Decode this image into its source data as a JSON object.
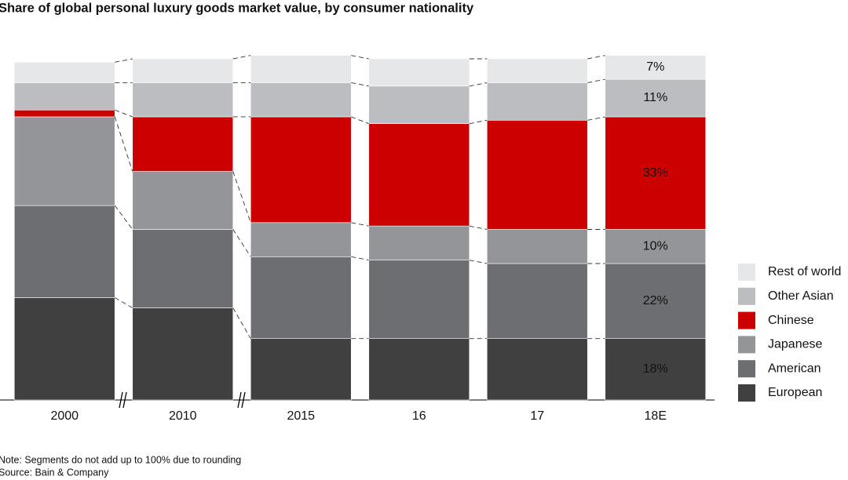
{
  "chart_data": {
    "type": "stacked_bar",
    "title": "Share of global personal luxury goods market value, by consumer nationality",
    "categories": [
      "2000",
      "2010",
      "2015",
      "16",
      "17",
      "18E"
    ],
    "ylim": [
      0,
      100
    ],
    "series": [
      {
        "name": "European",
        "color": "#404041",
        "values": [
          30,
          27,
          18,
          18,
          18,
          18
        ],
        "value_labels": [
          null,
          null,
          null,
          null,
          null,
          "18%"
        ]
      },
      {
        "name": "American",
        "color": "#6d6e71",
        "values": [
          27,
          23,
          24,
          23,
          22,
          22
        ],
        "value_labels": [
          null,
          null,
          null,
          null,
          null,
          "22%"
        ]
      },
      {
        "name": "Japanese",
        "color": "#939598",
        "values": [
          26,
          17,
          10,
          10,
          10,
          10
        ],
        "value_labels": [
          null,
          null,
          null,
          null,
          null,
          "10%"
        ]
      },
      {
        "name": "Chinese",
        "color": "#cc0000",
        "values": [
          2,
          16,
          31,
          30,
          32,
          33
        ],
        "value_labels": [
          null,
          null,
          null,
          null,
          null,
          "33%"
        ]
      },
      {
        "name": "Other Asian",
        "color": "#bcbdc0",
        "values": [
          8,
          10,
          10,
          11,
          11,
          11
        ],
        "value_labels": [
          null,
          null,
          null,
          null,
          null,
          "11%"
        ]
      },
      {
        "name": "Rest of world",
        "color": "#e6e7e8",
        "values": [
          6,
          7,
          8,
          8,
          7,
          7
        ],
        "value_labels": [
          null,
          null,
          null,
          null,
          null,
          "7%"
        ]
      }
    ],
    "notes": [
      "Note: Segments do not add up to 100% due to rounding",
      "Source: Bain & Company"
    ]
  }
}
